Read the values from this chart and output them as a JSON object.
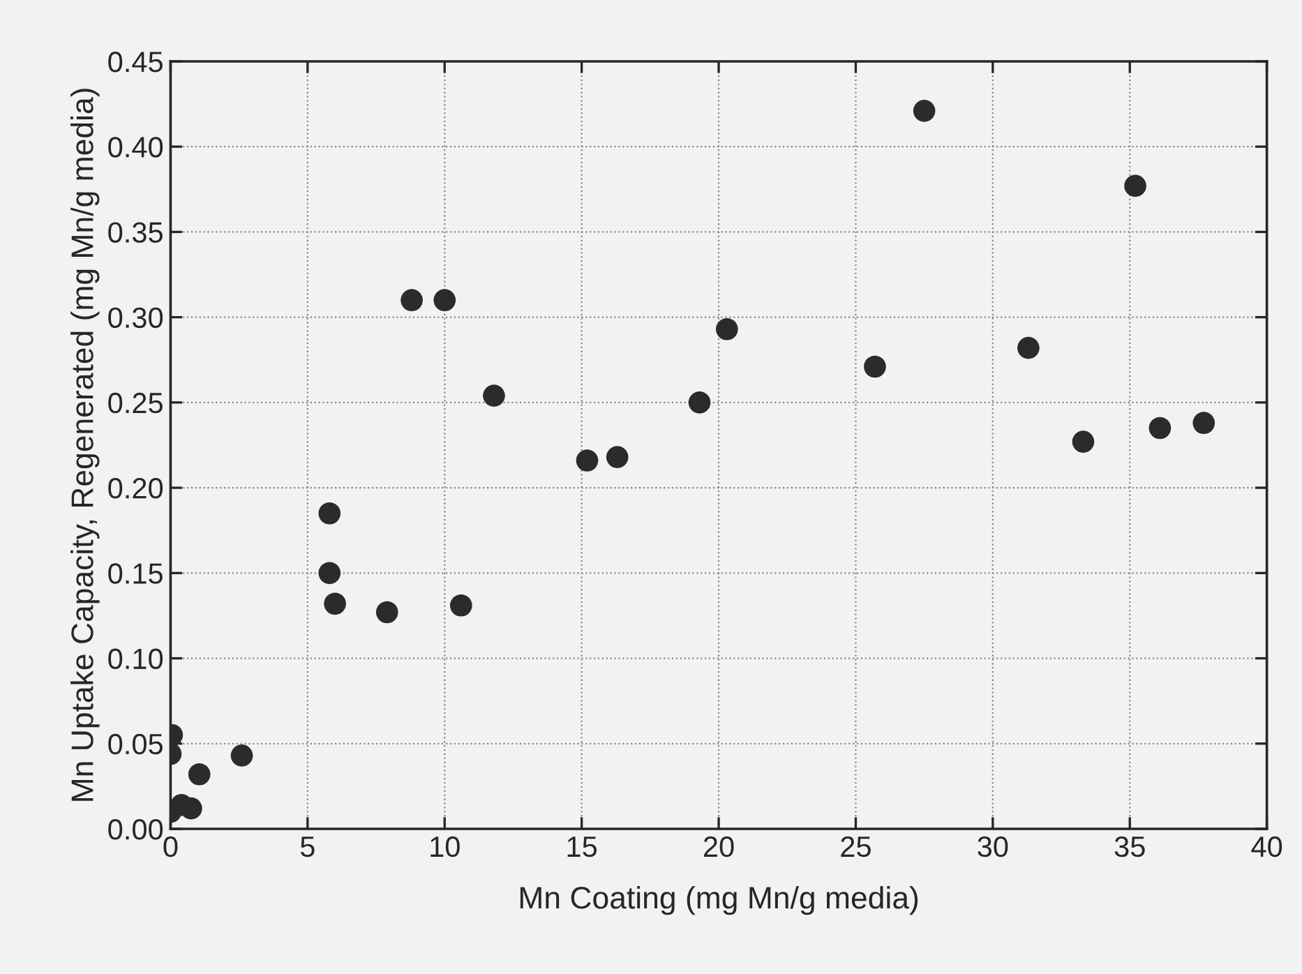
{
  "chart_data": {
    "type": "scatter",
    "xlabel": "Mn Coating (mg Mn/g media)",
    "ylabel": "Mn Uptake Capacity, Regenerated (mg Mn/g media)",
    "x": [
      0.05,
      0.0,
      0.0,
      0.4,
      0.75,
      1.05,
      2.6,
      5.8,
      5.8,
      6.0,
      7.9,
      8.8,
      10.0,
      10.6,
      11.8,
      15.2,
      16.3,
      19.3,
      20.3,
      25.7,
      27.5,
      31.3,
      33.3,
      35.2,
      36.1,
      37.7
    ],
    "values": [
      0.055,
      0.044,
      0.01,
      0.014,
      0.012,
      0.032,
      0.043,
      0.185,
      0.15,
      0.132,
      0.127,
      0.31,
      0.31,
      0.131,
      0.254,
      0.216,
      0.218,
      0.25,
      0.293,
      0.271,
      0.421,
      0.282,
      0.227,
      0.377,
      0.235,
      0.238
    ],
    "color": "#2b2b2b",
    "marker": "circle",
    "grid": true,
    "xlim": [
      0,
      40
    ],
    "xticks": [
      0,
      5,
      10,
      15,
      20,
      25,
      30,
      35,
      40
    ],
    "ylim": [
      0,
      0.45
    ],
    "yticks": [
      {
        "value": 0,
        "label": "0.00"
      },
      {
        "value": 0.05,
        "label": "0.05"
      },
      {
        "value": 0.1,
        "label": "0.10"
      },
      {
        "value": 0.15,
        "label": "0.15"
      },
      {
        "value": 0.2,
        "label": "0.20"
      },
      {
        "value": 0.25,
        "label": "0.25"
      },
      {
        "value": 0.3,
        "label": "0.30"
      },
      {
        "value": 0.35,
        "label": "0.35"
      },
      {
        "value": 0.4,
        "label": "0.40"
      },
      {
        "value": 0.45,
        "label": "0.45"
      }
    ]
  }
}
